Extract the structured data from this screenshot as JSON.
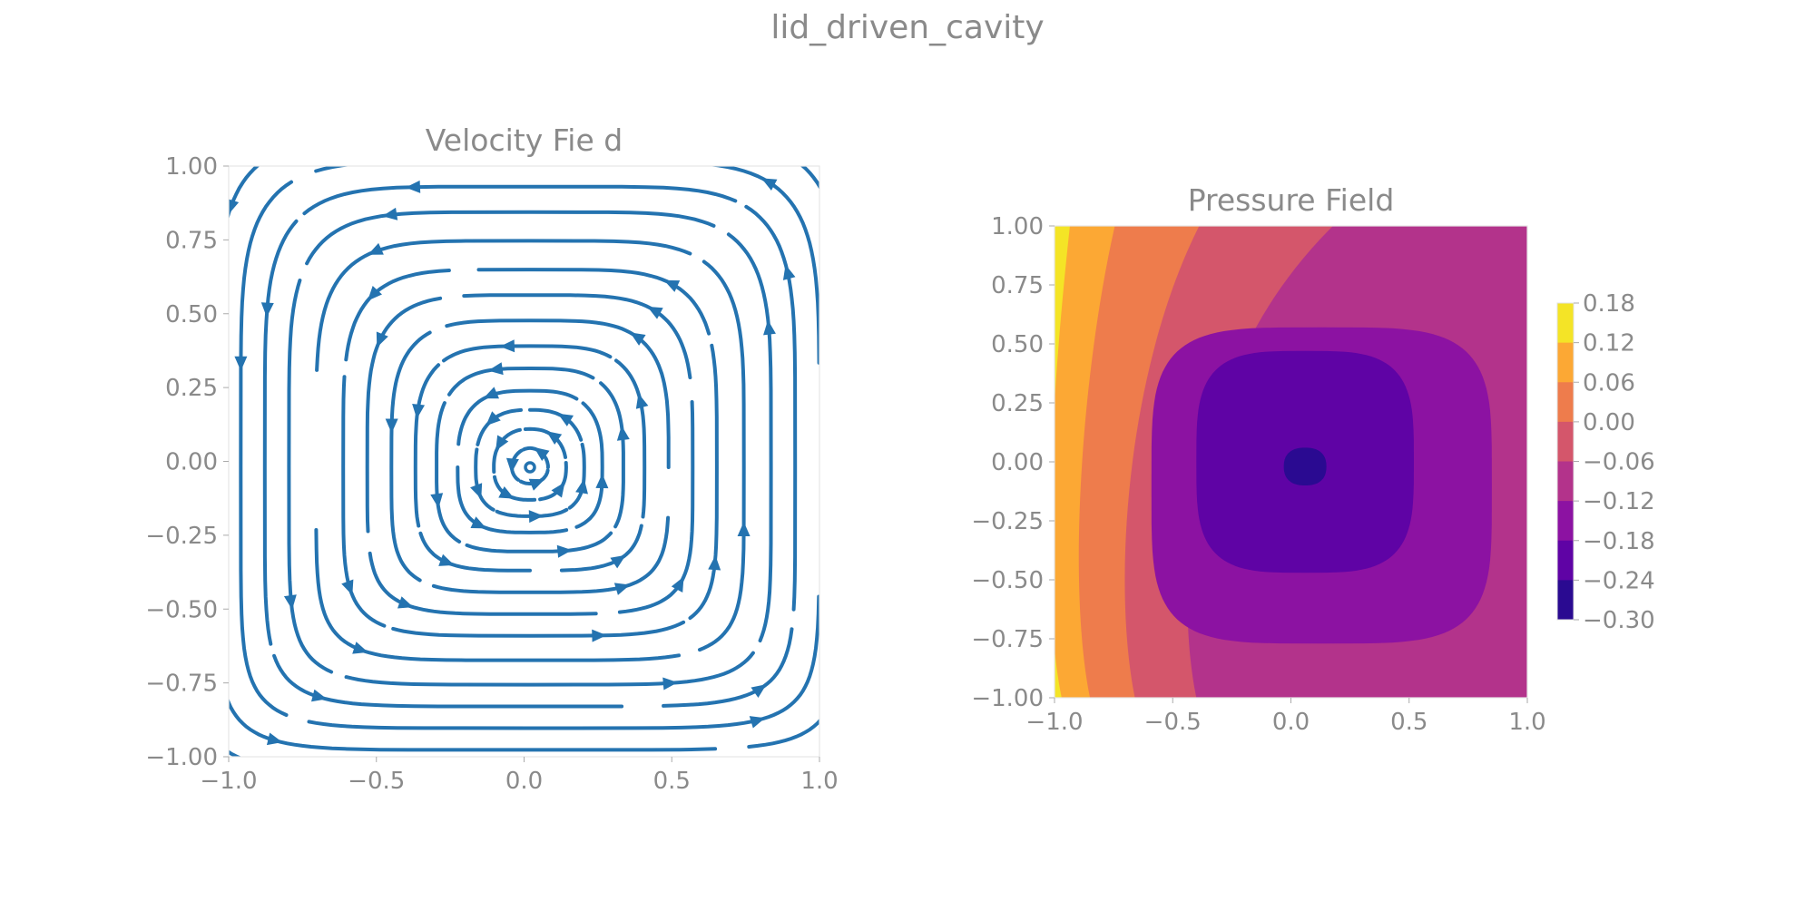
{
  "figure_title": "lid_driven_cavity",
  "chart_data": [
    {
      "type": "streamplot",
      "title": "Velocity Fie d",
      "xlabel": "",
      "ylabel": "",
      "xlim": [
        -1.0,
        1.0
      ],
      "ylim": [
        -1.0,
        1.0
      ],
      "x_ticks": [
        "−1.0",
        "−0.5",
        "0.0",
        "0.5",
        "1.0"
      ],
      "y_ticks": [
        "1.00",
        "0.75",
        "0.50",
        "0.25",
        "0.00",
        "−0.25",
        "−0.50",
        "−0.75",
        "−1.00"
      ],
      "color": "#2473b0",
      "flow": "counter-clockwise vortex centered near (0.02, -0.02)",
      "grid": false
    },
    {
      "type": "contourf",
      "title": "Pressure Field",
      "xlabel": "",
      "ylabel": "",
      "xlim": [
        -1.0,
        1.0
      ],
      "ylim": [
        -1.0,
        1.0
      ],
      "x_ticks": [
        "−1.0",
        "−0.5",
        "0.0",
        "0.5",
        "1.0"
      ],
      "y_ticks": [
        "1.00",
        "0.75",
        "0.50",
        "0.25",
        "0.00",
        "−0.25",
        "−0.50",
        "−0.75",
        "−1.00"
      ],
      "minimum_location": [
        0.03,
        -0.02
      ],
      "levels": [
        -0.3,
        -0.24,
        -0.18,
        -0.12,
        -0.06,
        0.0,
        0.06,
        0.12,
        0.18
      ],
      "colorbar_ticks": [
        "0.18",
        "0.12",
        "0.06",
        "0.00",
        "−0.06",
        "−0.12",
        "−0.18",
        "−0.24",
        "−0.30"
      ],
      "band_colors": [
        "#2a0a91",
        "#5f03a5",
        "#8c12a2",
        "#b3338b",
        "#d4566b",
        "#ee7c4c",
        "#fca834",
        "#f4e426"
      ],
      "grid": false
    }
  ]
}
